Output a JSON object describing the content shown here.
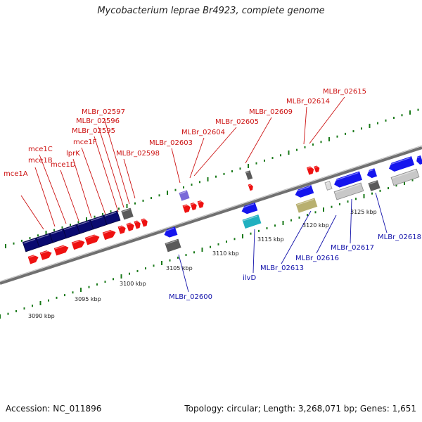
{
  "title": "Mycobacterium leprae Br4923, complete genome",
  "footer": {
    "accession": "Accession: NC_011896",
    "stats": "Topology: circular; Length: 3,268,071 bp; Genes: 1,651"
  },
  "colors": {
    "backbone": "#808080",
    "tick": "#1a7a1a",
    "red_gene": "#ee1111",
    "blue_gene": "#1515ee",
    "navy_gene": "#0a0a70",
    "grey_gene": "#5a5a5a",
    "purple_gene": "#7a6ad8",
    "cyan_gene": "#20b0c0",
    "olive_gene": "#b8b070",
    "lightgrey_gene": "#c8c8c8",
    "red_label": "#cc1111",
    "blue_label": "#1111aa"
  },
  "kbp_labels": [
    "3090 kbp",
    "3095 kbp",
    "3100 kbp",
    "3105 kbp",
    "3110 kbp",
    "3115 kbp",
    "3120 kbp",
    "3125 kbp"
  ],
  "top_labels": [
    "mce1A",
    "mce1B",
    "mce1C",
    "mce1D",
    "lprK",
    "mce1F",
    "MLBr_02595",
    "MLBr_02596",
    "MLBr_02597",
    "MLBr_02598",
    "MLBr_02603",
    "MLBr_02604",
    "MLBr_02605",
    "MLBr_02609",
    "MLBr_02614",
    "MLBr_02615"
  ],
  "bottom_labels": [
    "MLBr_02600",
    "ilvD",
    "MLBr_02613",
    "MLBr_02616",
    "MLBr_02617",
    "MLBr_02618"
  ]
}
